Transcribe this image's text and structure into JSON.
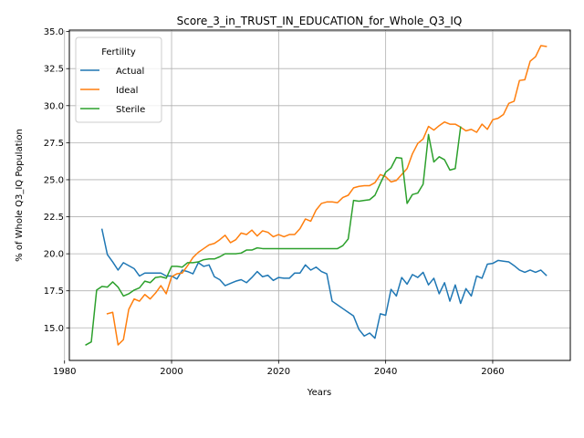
{
  "chart_data": {
    "type": "line",
    "title": "Score_3_in_TRUST_IN_EDUCATION_for_Whole_Q3_IQ",
    "xlabel": "Years",
    "ylabel": "% of Whole Q3_IQ Population",
    "xlim": [
      1980.9,
      2074.5
    ],
    "ylim": [
      12.8,
      35.1
    ],
    "xticks": [
      1980,
      2000,
      2020,
      2040,
      2060
    ],
    "yticks": [
      15.0,
      17.5,
      20.0,
      22.5,
      25.0,
      27.5,
      30.0,
      32.5,
      35.0
    ],
    "grid": true,
    "legend": {
      "title": "Fertility",
      "placement": "upper left"
    },
    "series": [
      {
        "name": "Actual",
        "color": "#1f77b4",
        "x": [
          1987,
          1988,
          1989,
          1990,
          1991,
          1992,
          1993,
          1994,
          1995,
          1996,
          1997,
          1998,
          1999,
          2000,
          2001,
          2002,
          2003,
          2004,
          2005,
          2006,
          2007,
          2008,
          2009,
          2010,
          2011,
          2012,
          2013,
          2014,
          2015,
          2016,
          2017,
          2018,
          2019,
          2020,
          2021,
          2022,
          2023,
          2024,
          2025,
          2026,
          2027,
          2028,
          2029,
          2030,
          2031,
          2032,
          2033,
          2034,
          2035,
          2036,
          2037,
          2038,
          2039,
          2040,
          2041,
          2042,
          2043,
          2044,
          2045,
          2046,
          2047,
          2048,
          2049,
          2050,
          2051,
          2052,
          2053,
          2054,
          2055,
          2056,
          2057,
          2058,
          2059,
          2060,
          2061,
          2062,
          2063,
          2064,
          2065,
          2066,
          2067,
          2068,
          2069,
          2070
        ],
        "y": [
          21.65,
          19.95,
          19.45,
          18.9,
          19.4,
          19.2,
          19.0,
          18.5,
          18.7,
          18.7,
          18.7,
          18.7,
          18.5,
          18.5,
          18.3,
          18.9,
          18.8,
          18.65,
          19.4,
          19.15,
          19.25,
          18.45,
          18.25,
          17.85,
          18.0,
          18.15,
          18.25,
          18.05,
          18.4,
          18.8,
          18.45,
          18.55,
          18.2,
          18.4,
          18.35,
          18.35,
          18.7,
          18.7,
          19.25,
          18.9,
          19.1,
          18.8,
          18.65,
          16.8,
          16.55,
          16.3,
          16.05,
          15.8,
          14.9,
          14.45,
          14.65,
          14.3,
          15.95,
          15.85,
          17.6,
          17.15,
          18.4,
          17.95,
          18.6,
          18.4,
          18.75,
          17.9,
          18.35,
          17.3,
          18.05,
          16.8,
          17.9,
          16.65,
          17.65,
          17.15,
          18.5,
          18.35,
          19.3,
          19.35,
          19.55,
          19.5,
          19.45,
          19.2,
          18.9,
          18.75,
          18.9,
          18.75,
          18.9,
          18.55
        ]
      },
      {
        "name": "Ideal",
        "color": "#ff7f0e",
        "x": [
          1988,
          1989,
          1990,
          1991,
          1992,
          1993,
          1994,
          1995,
          1996,
          1997,
          1998,
          1999,
          2000,
          2001,
          2002,
          2003,
          2004,
          2005,
          2006,
          2007,
          2008,
          2009,
          2010,
          2011,
          2012,
          2013,
          2014,
          2015,
          2016,
          2017,
          2018,
          2019,
          2020,
          2021,
          2022,
          2023,
          2024,
          2025,
          2026,
          2027,
          2028,
          2029,
          2030,
          2031,
          2032,
          2033,
          2034,
          2035,
          2036,
          2037,
          2038,
          2039,
          2040,
          2041,
          2042,
          2043,
          2044,
          2045,
          2046,
          2047,
          2048,
          2049,
          2050,
          2051,
          2052,
          2053,
          2054,
          2055,
          2056,
          2057,
          2058,
          2059,
          2060,
          2061,
          2062,
          2063,
          2064,
          2065,
          2066,
          2067,
          2068,
          2069,
          2070
        ],
        "y": [
          15.95,
          16.05,
          13.85,
          14.2,
          16.25,
          16.95,
          16.8,
          17.25,
          16.95,
          17.35,
          17.85,
          17.3,
          18.45,
          18.65,
          18.7,
          19.2,
          19.75,
          20.1,
          20.35,
          20.6,
          20.7,
          20.95,
          21.25,
          20.75,
          20.95,
          21.4,
          21.3,
          21.6,
          21.2,
          21.55,
          21.45,
          21.15,
          21.3,
          21.15,
          21.3,
          21.3,
          21.7,
          22.35,
          22.2,
          22.95,
          23.4,
          23.5,
          23.5,
          23.45,
          23.8,
          23.95,
          24.45,
          24.55,
          24.6,
          24.6,
          24.8,
          25.35,
          25.2,
          24.85,
          24.95,
          25.35,
          25.75,
          26.75,
          27.45,
          27.75,
          28.6,
          28.35,
          28.65,
          28.9,
          28.75,
          28.75,
          28.55,
          28.3,
          28.4,
          28.2,
          28.75,
          28.4,
          29.05,
          29.15,
          29.4,
          30.15,
          30.3,
          31.7,
          31.75,
          33.0,
          33.3,
          34.05,
          34.0
        ]
      },
      {
        "name": "Sterile",
        "color": "#2ca02c",
        "x": [
          1984,
          1985,
          1986,
          1987,
          1988,
          1989,
          1990,
          1991,
          1992,
          1993,
          1994,
          1995,
          1996,
          1997,
          1998,
          1999,
          2000,
          2001,
          2002,
          2003,
          2004,
          2005,
          2006,
          2007,
          2008,
          2009,
          2010,
          2011,
          2012,
          2013,
          2014,
          2015,
          2016,
          2017,
          2018,
          2019,
          2020,
          2021,
          2022,
          2023,
          2024,
          2025,
          2026,
          2027,
          2028,
          2029,
          2030,
          2031,
          2032,
          2033,
          2034,
          2035,
          2036,
          2037,
          2038,
          2039,
          2040,
          2041,
          2042,
          2043,
          2044,
          2045,
          2046,
          2047,
          2048,
          2049,
          2050,
          2051,
          2052,
          2053,
          2054
        ],
        "y": [
          13.85,
          14.05,
          17.55,
          17.8,
          17.75,
          18.1,
          17.75,
          17.15,
          17.3,
          17.55,
          17.7,
          18.15,
          18.05,
          18.4,
          18.45,
          18.35,
          19.15,
          19.15,
          19.1,
          19.4,
          19.4,
          19.45,
          19.6,
          19.65,
          19.65,
          19.8,
          20.0,
          20.0,
          20.0,
          20.05,
          20.25,
          20.25,
          20.4,
          20.35,
          20.35,
          20.35,
          20.35,
          20.35,
          20.35,
          20.35,
          20.35,
          20.35,
          20.35,
          20.35,
          20.35,
          20.35,
          20.35,
          20.35,
          20.55,
          21.0,
          23.6,
          23.55,
          23.6,
          23.65,
          23.95,
          24.75,
          25.5,
          25.8,
          26.5,
          26.45,
          23.4,
          24.0,
          24.1,
          24.7,
          28.05,
          26.2,
          26.55,
          26.35,
          25.65,
          25.75,
          28.55
        ]
      }
    ]
  }
}
